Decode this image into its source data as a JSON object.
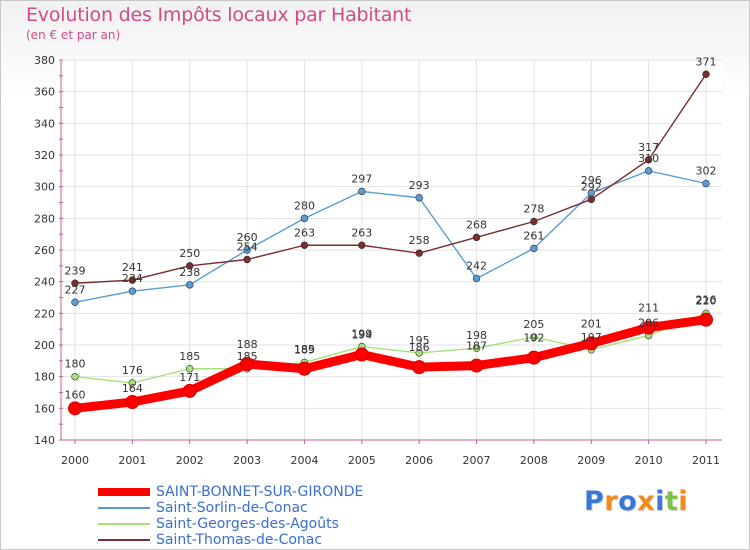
{
  "header": {
    "title": "Evolution des Impôts locaux par Habitant",
    "subtitle": "(en € et par an)"
  },
  "brand": {
    "logo_text": "Proxiti"
  },
  "chart_data": {
    "type": "line",
    "title": "Evolution des Impôts locaux par Habitant",
    "subtitle": "(en € et par an)",
    "xlabel": "",
    "ylabel": "",
    "categories": [
      "2000",
      "2001",
      "2002",
      "2003",
      "2004",
      "2005",
      "2006",
      "2007",
      "2008",
      "2009",
      "2010",
      "2011"
    ],
    "ylim": [
      140,
      380
    ],
    "yticks": [
      140,
      160,
      180,
      200,
      220,
      240,
      260,
      280,
      300,
      320,
      340,
      360,
      380
    ],
    "grid": true,
    "legend_position": "bottom-left",
    "series": [
      {
        "name": "SAINT-BONNET-SUR-GIRONDE",
        "color": "#ff0000",
        "values": [
          160,
          164,
          171,
          188,
          185,
          194,
          186,
          187,
          192,
          201,
          211,
          216
        ],
        "labels": [
          "160",
          "164",
          "171",
          "188",
          "185",
          "194",
          "186",
          "187",
          "192",
          "201",
          "211",
          "216"
        ]
      },
      {
        "name": "Saint-Sorlin-de-Conac",
        "color": "#5b9bd5",
        "values": [
          227,
          234,
          238,
          260,
          280,
          297,
          293,
          242,
          261,
          296,
          310,
          302
        ],
        "labels": [
          "227",
          "234",
          "238",
          "260",
          "280",
          "297",
          "293",
          "242",
          "261",
          "296",
          "310",
          "302"
        ]
      },
      {
        "name": "Saint-Georges-des-Agoûts",
        "color": "#a6e07a",
        "values": [
          180,
          176,
          185,
          185,
          189,
          199,
          195,
          198,
          205,
          197,
          206,
          220
        ],
        "labels": [
          "180",
          "176",
          "185",
          "185",
          "189",
          "199",
          "195",
          "198",
          "205",
          "197",
          "206",
          "220"
        ]
      },
      {
        "name": "Saint-Thomas-de-Conac",
        "color": "#7a2e2e",
        "values": [
          239,
          241,
          250,
          254,
          263,
          263,
          258,
          268,
          278,
          292,
          317,
          371
        ],
        "labels": [
          "239",
          "241",
          "250",
          "254",
          "263",
          "263",
          "258",
          "268",
          "278",
          "292",
          "317",
          "371"
        ]
      }
    ]
  }
}
